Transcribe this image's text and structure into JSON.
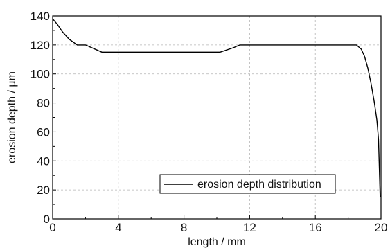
{
  "chart_data": {
    "type": "line",
    "xlabel": "length / mm",
    "ylabel": "erosion depth / µm",
    "xlim": [
      0,
      20
    ],
    "ylim": [
      0,
      140
    ],
    "xticks": [
      0,
      4,
      8,
      12,
      16,
      20
    ],
    "yticks": [
      0,
      20,
      40,
      60,
      80,
      100,
      120,
      140
    ],
    "grid": true,
    "legend_position": "bottom-right",
    "series": [
      {
        "name": "erosion depth distribution",
        "color": "#000000",
        "x": [
          0,
          0.3,
          0.6,
          1.0,
          1.5,
          2.0,
          3.0,
          4.0,
          6.0,
          8.0,
          10.2,
          11.0,
          11.4,
          12.0,
          14.0,
          16.0,
          18.0,
          18.5,
          18.8,
          19.0,
          19.2,
          19.4,
          19.6,
          19.75,
          19.85,
          19.9,
          19.95
        ],
        "y": [
          138,
          134,
          129,
          124,
          120,
          120,
          115,
          115,
          115,
          115,
          115,
          118,
          120,
          120,
          120,
          120,
          120,
          120,
          117,
          112,
          104,
          93,
          80,
          68,
          55,
          35,
          15
        ]
      }
    ]
  }
}
